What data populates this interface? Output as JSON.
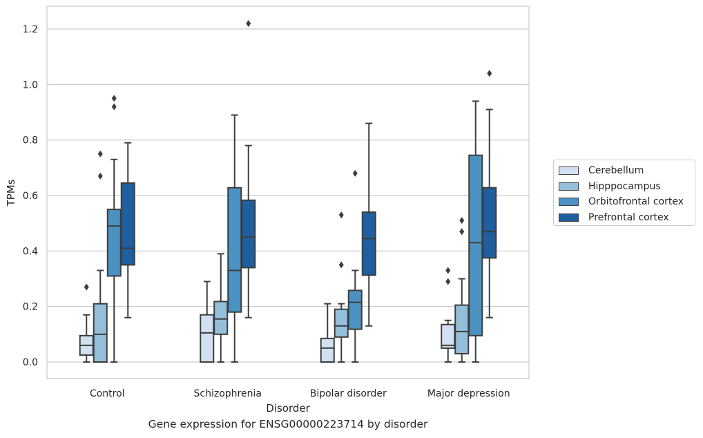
{
  "chart_data": {
    "type": "boxplot",
    "caption": "Gene expression for ENSG00000223714 by disorder",
    "xlabel": "Disorder",
    "ylabel": "TPMs",
    "ylim": [
      -0.06,
      1.28
    ],
    "yticks": [
      0.0,
      0.2,
      0.4,
      0.6,
      0.8,
      1.0,
      1.2
    ],
    "ytick_labels": [
      "0.0",
      "0.2",
      "0.4",
      "0.6",
      "0.8",
      "1.0",
      "1.2"
    ],
    "grid": true,
    "legend_position": "right",
    "categories": [
      "Control",
      "Schizophrenia",
      "Bipolar disorder",
      "Major depression"
    ],
    "series": [
      {
        "name": "Cerebellum",
        "color": "#d1e1f1",
        "boxes": [
          {
            "whisker_low": 0.0,
            "q1": 0.025,
            "median": 0.06,
            "q3": 0.095,
            "whisker_high": 0.17,
            "outliers": [
              0.27
            ]
          },
          {
            "whisker_low": 0.0,
            "q1": 0.0,
            "median": 0.105,
            "q3": 0.17,
            "whisker_high": 0.29,
            "outliers": []
          },
          {
            "whisker_low": 0.0,
            "q1": 0.0,
            "median": 0.05,
            "q3": 0.085,
            "whisker_high": 0.21,
            "outliers": []
          },
          {
            "whisker_low": 0.0,
            "q1": 0.05,
            "median": 0.06,
            "q3": 0.135,
            "whisker_high": 0.15,
            "outliers": [
              0.29,
              0.33
            ]
          }
        ]
      },
      {
        "name": "Hipppocampus",
        "color": "#93bfdb",
        "boxes": [
          {
            "whisker_low": 0.0,
            "q1": 0.0,
            "median": 0.1,
            "q3": 0.21,
            "whisker_high": 0.33,
            "outliers": [
              0.67,
              0.75
            ]
          },
          {
            "whisker_low": 0.0,
            "q1": 0.1,
            "median": 0.155,
            "q3": 0.218,
            "whisker_high": 0.39,
            "outliers": []
          },
          {
            "whisker_low": 0.0,
            "q1": 0.09,
            "median": 0.13,
            "q3": 0.19,
            "whisker_high": 0.21,
            "outliers": [
              0.35,
              0.53
            ]
          },
          {
            "whisker_low": 0.0,
            "q1": 0.03,
            "median": 0.11,
            "q3": 0.205,
            "whisker_high": 0.3,
            "outliers": [
              0.47,
              0.51
            ]
          }
        ]
      },
      {
        "name": "Orbitofrontal cortex",
        "color": "#4b92c3",
        "boxes": [
          {
            "whisker_low": 0.0,
            "q1": 0.31,
            "median": 0.49,
            "q3": 0.55,
            "whisker_high": 0.73,
            "outliers": [
              0.92,
              0.95
            ]
          },
          {
            "whisker_low": 0.0,
            "q1": 0.18,
            "median": 0.33,
            "q3": 0.628,
            "whisker_high": 0.89,
            "outliers": []
          },
          {
            "whisker_low": 0.0,
            "q1": 0.118,
            "median": 0.215,
            "q3": 0.258,
            "whisker_high": 0.33,
            "outliers": [
              0.68
            ]
          },
          {
            "whisker_low": 0.0,
            "q1": 0.095,
            "median": 0.43,
            "q3": 0.745,
            "whisker_high": 0.94,
            "outliers": []
          }
        ]
      },
      {
        "name": "Prefrontal cortex",
        "color": "#1f5f9f",
        "boxes": [
          {
            "whisker_low": 0.16,
            "q1": 0.35,
            "median": 0.41,
            "q3": 0.645,
            "whisker_high": 0.79,
            "outliers": []
          },
          {
            "whisker_low": 0.16,
            "q1": 0.34,
            "median": 0.45,
            "q3": 0.583,
            "whisker_high": 0.78,
            "outliers": [
              1.22
            ]
          },
          {
            "whisker_low": 0.13,
            "q1": 0.313,
            "median": 0.445,
            "q3": 0.54,
            "whisker_high": 0.86,
            "outliers": []
          },
          {
            "whisker_low": 0.16,
            "q1": 0.375,
            "median": 0.47,
            "q3": 0.628,
            "whisker_high": 0.91,
            "outliers": [
              1.04
            ]
          }
        ]
      }
    ]
  }
}
